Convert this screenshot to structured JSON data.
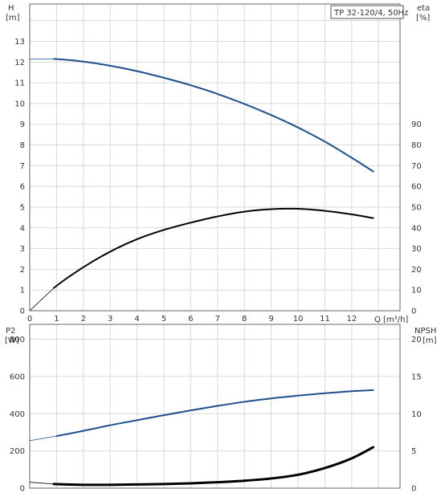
{
  "chart_data": [
    {
      "type": "line",
      "legend_box": "TP 32-120/4, 50Hz",
      "legend_position": "top-right",
      "grid": true,
      "xlabel": "Q [m³/h]",
      "x_ticks": [
        "0",
        "1",
        "2",
        "3",
        "4",
        "5",
        "6",
        "7",
        "8",
        "9",
        "10",
        "11",
        "12"
      ],
      "xlim": [
        0,
        13.8
      ],
      "left_axis": {
        "label_line1": "H",
        "label_line2": "[m]",
        "ylim": [
          0,
          14.8
        ],
        "ticks": [
          "0",
          "1",
          "2",
          "3",
          "4",
          "5",
          "6",
          "7",
          "8",
          "9",
          "10",
          "11",
          "12",
          "13"
        ]
      },
      "right_axis": {
        "label_line1": "eta",
        "label_line2": "[%]",
        "ylim": [
          0,
          148
        ],
        "ticks": [
          "0",
          "10",
          "20",
          "30",
          "40",
          "50",
          "60",
          "70",
          "80",
          "90"
        ]
      },
      "series": [
        {
          "axis": "left",
          "color": "#1f4e8c",
          "x": [
            0,
            0.9,
            2,
            3,
            4,
            5,
            6,
            7,
            8,
            9,
            10,
            11,
            12,
            12.8
          ],
          "y": [
            12.15,
            12.15,
            12.02,
            11.82,
            11.56,
            11.24,
            10.88,
            10.46,
            9.98,
            9.44,
            8.84,
            8.16,
            7.38,
            6.72
          ]
        },
        {
          "axis": "right",
          "color": "#000000",
          "x": [
            0,
            0.9,
            2,
            3,
            4,
            5,
            6,
            7,
            8,
            9,
            10,
            11,
            12,
            12.8
          ],
          "y": [
            0,
            11,
            21,
            28.5,
            34.5,
            39,
            42.5,
            45.5,
            47.8,
            49,
            49.2,
            48.2,
            46.5,
            44.7
          ]
        }
      ]
    },
    {
      "type": "line",
      "grid": true,
      "xlim": [
        0,
        13.8
      ],
      "left_axis": {
        "label_line1": "P2",
        "label_line2": "[W]",
        "ylim": [
          0,
          880
        ],
        "ticks": [
          "0",
          "200",
          "400",
          "600",
          "800"
        ]
      },
      "right_axis": {
        "label_line1": "NPSH",
        "label_line2": "[m]",
        "ylim": [
          0,
          22
        ],
        "ticks": [
          "0",
          "5",
          "10",
          "15",
          "20"
        ]
      },
      "series": [
        {
          "axis": "left",
          "color": "#1f4e8c",
          "x": [
            0,
            1,
            2,
            3,
            4,
            5,
            6,
            7,
            8,
            9,
            10,
            11,
            12,
            12.8
          ],
          "y": [
            255,
            280,
            308,
            338,
            365,
            392,
            418,
            442,
            464,
            482,
            497,
            510,
            521,
            527
          ]
        },
        {
          "axis": "right",
          "color": "#000000",
          "x": [
            0,
            0.9,
            2,
            3,
            4,
            5,
            6,
            7,
            8,
            9,
            10,
            11,
            12,
            12.8
          ],
          "y": [
            0.8,
            0.55,
            0.45,
            0.45,
            0.5,
            0.55,
            0.65,
            0.8,
            1.0,
            1.3,
            1.8,
            2.7,
            4.0,
            5.5
          ]
        }
      ]
    }
  ]
}
